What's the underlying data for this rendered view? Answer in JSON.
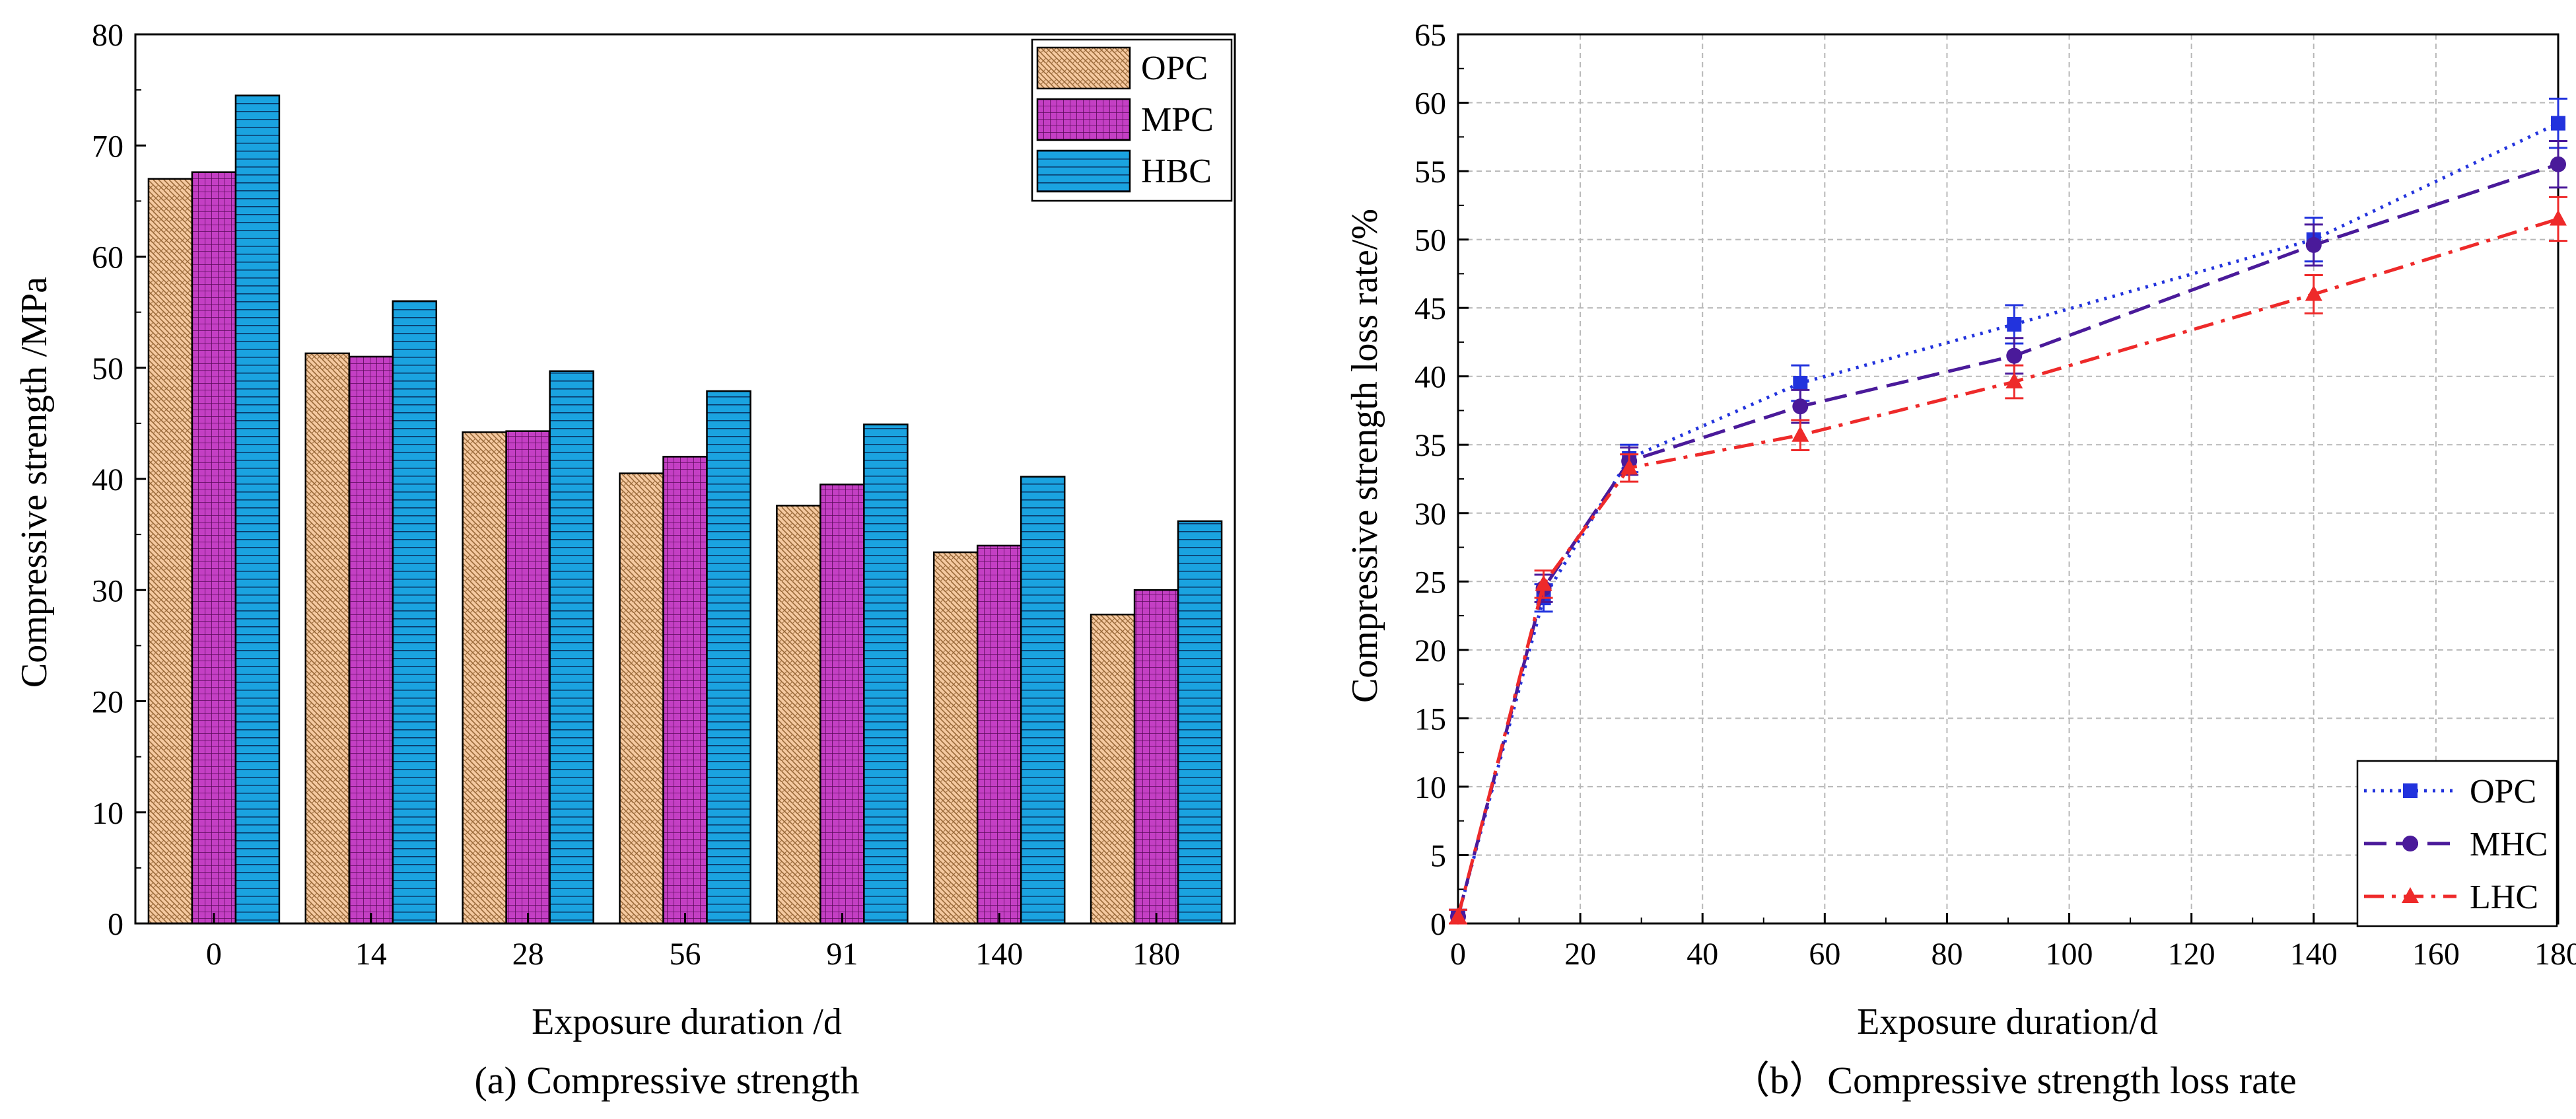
{
  "chart_data": [
    {
      "type": "bar",
      "caption": "(a) Compressive strength",
      "xlabel": "Exposure duration /d",
      "ylabel": "Compressive strength /MPa",
      "ylim": [
        0,
        80
      ],
      "yticks": [
        "0",
        "10",
        "20",
        "30",
        "40",
        "50",
        "60",
        "70",
        "80"
      ],
      "categories": [
        "0",
        "14",
        "28",
        "56",
        "91",
        "140",
        "180"
      ],
      "legend_position": "top-right",
      "series": [
        {
          "name": "OPC",
          "color": "#f5c9a0",
          "pattern": "brick",
          "values": [
            67.0,
            51.3,
            44.2,
            40.5,
            37.6,
            33.4,
            27.8
          ]
        },
        {
          "name": "MPC",
          "color": "#c43fc4",
          "pattern": "grid",
          "values": [
            67.6,
            51.0,
            44.3,
            42.0,
            39.5,
            34.0,
            30.0
          ]
        },
        {
          "name": "HBC",
          "color": "#1aa3e0",
          "pattern": "hlines",
          "values": [
            74.5,
            56.0,
            49.7,
            47.9,
            44.9,
            40.2,
            36.2
          ]
        }
      ]
    },
    {
      "type": "line",
      "caption": "（b）Compressive strength loss rate",
      "xlabel": "Exposure duration/d",
      "ylabel": "Compressive strength loss rate/%",
      "xlim": [
        0,
        180
      ],
      "ylim": [
        0,
        65
      ],
      "xticks": [
        "0",
        "20",
        "40",
        "60",
        "80",
        "100",
        "120",
        "140",
        "160",
        "180"
      ],
      "yticks": [
        "0",
        "5",
        "10",
        "15",
        "20",
        "25",
        "30",
        "35",
        "40",
        "45",
        "50",
        "55",
        "60",
        "65"
      ],
      "grid": true,
      "legend_position": "bottom-right",
      "x": [
        0,
        14,
        28,
        56,
        91,
        140,
        180
      ],
      "series": [
        {
          "name": "OPC",
          "color": "#2233dd",
          "dash": "dotted",
          "marker": "square",
          "values": [
            0.5,
            23.8,
            34.0,
            39.5,
            43.8,
            50.0,
            58.5
          ],
          "errors": [
            0.5,
            1.0,
            1.0,
            1.3,
            1.4,
            1.6,
            1.8
          ]
        },
        {
          "name": "MHC",
          "color": "#4a1a9a",
          "dash": "dashed",
          "marker": "circle",
          "values": [
            0.5,
            24.5,
            33.8,
            37.8,
            41.5,
            49.6,
            55.5
          ],
          "errors": [
            0.5,
            1.0,
            1.0,
            1.2,
            1.3,
            1.5,
            1.7
          ]
        },
        {
          "name": "LHC",
          "color": "#ee2a2a",
          "dash": "dashdot",
          "marker": "triangle",
          "values": [
            0.5,
            24.8,
            33.3,
            35.7,
            39.6,
            46.0,
            51.5
          ],
          "errors": [
            0.5,
            1.0,
            1.0,
            1.1,
            1.2,
            1.4,
            1.6
          ]
        }
      ]
    }
  ]
}
